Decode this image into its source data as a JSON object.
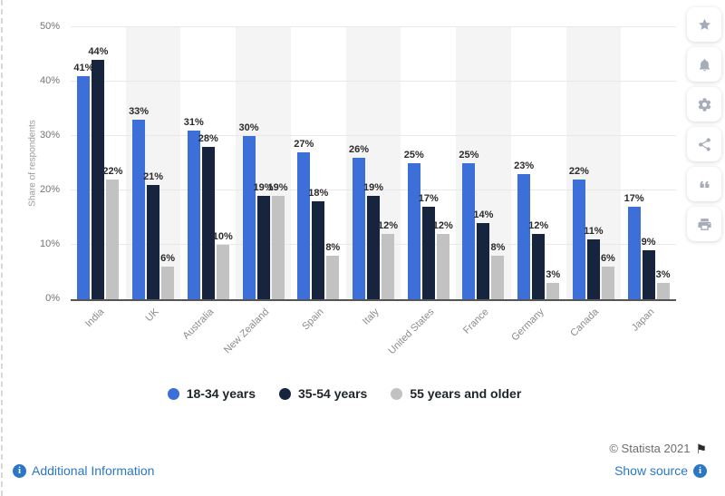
{
  "chart_data": {
    "type": "bar",
    "title": "",
    "xlabel": "",
    "ylabel": "Share of respondents",
    "ylim": [
      0,
      50
    ],
    "yticks": [
      "0%",
      "10%",
      "20%",
      "30%",
      "40%",
      "50%"
    ],
    "grid": true,
    "legend_position": "bottom",
    "value_label_suffix": "%",
    "categories": [
      "India",
      "UK",
      "Australia",
      "New Zealand",
      "Spain",
      "Italy",
      "United States",
      "France",
      "Germany",
      "Canada",
      "Japan"
    ],
    "series": [
      {
        "name": "18-34 years",
        "color": "#3C6FD7",
        "values": [
          41,
          33,
          31,
          30,
          27,
          26,
          25,
          25,
          23,
          22,
          17
        ]
      },
      {
        "name": "35-54 years",
        "color": "#16243E",
        "values": [
          44,
          21,
          28,
          19,
          18,
          19,
          17,
          14,
          12,
          11,
          9
        ]
      },
      {
        "name": "55 years and older",
        "color": "#C2C2C2",
        "values": [
          22,
          6,
          10,
          19,
          8,
          12,
          12,
          8,
          3,
          6,
          3
        ]
      }
    ]
  },
  "footer": {
    "copyright": "© Statista 2021",
    "additional_information": "Additional Information",
    "show_source": "Show source"
  },
  "icons": {
    "flag_glyph": "⚑",
    "info_glyph": "i",
    "sidebar": [
      "favorite-star",
      "notifications-bell",
      "settings-gear",
      "share",
      "cite-quote",
      "print"
    ]
  }
}
